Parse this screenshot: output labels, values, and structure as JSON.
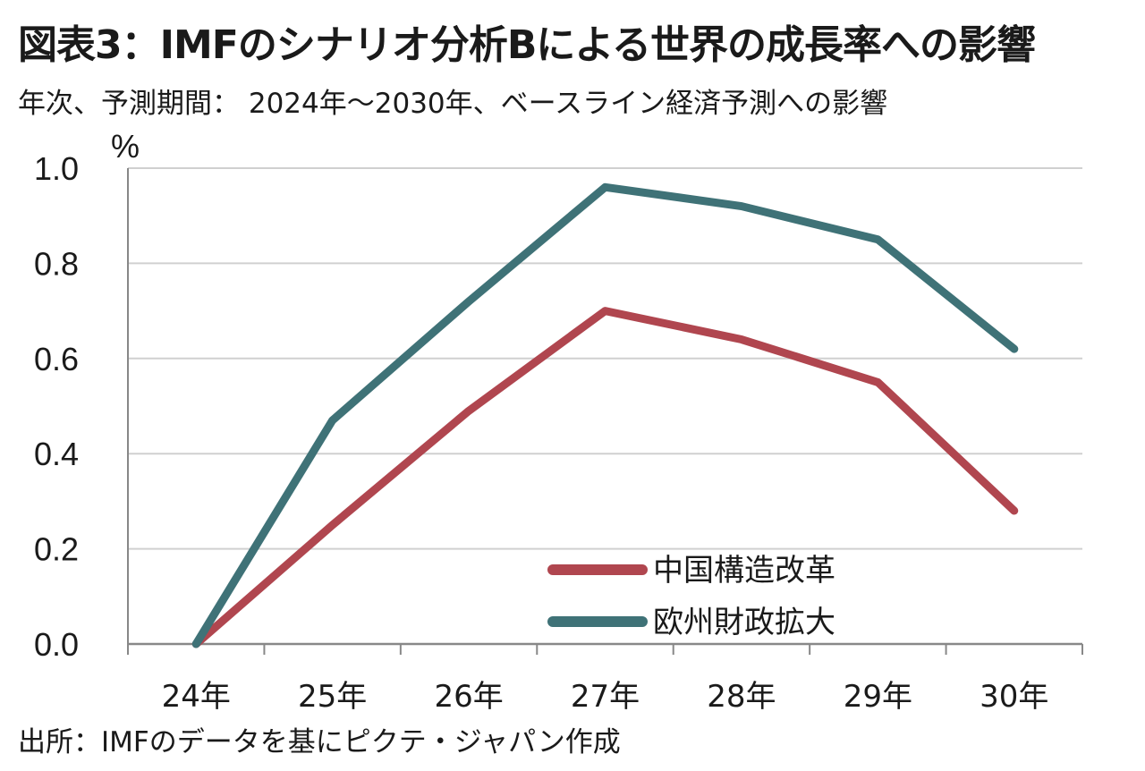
{
  "title": "図表3：IMFのシナリオ分析Bによる世界の成長率への影響",
  "subtitle": "年次、予測期間： 2024年～2030年、ベースライン経済予測への影響",
  "source": "出所：IMFのデータを基にピクテ・ジャパン作成",
  "chart_data": {
    "type": "line",
    "categories": [
      "24年",
      "25年",
      "26年",
      "27年",
      "28年",
      "29年",
      "30年"
    ],
    "ylabel": "%",
    "ylim": [
      0,
      1.0
    ],
    "yticks": [
      0.0,
      0.2,
      0.4,
      0.6,
      0.8,
      1.0
    ],
    "ytick_labels": [
      "0.0",
      "0.2",
      "0.4",
      "0.6",
      "0.8",
      "1.0"
    ],
    "grid": true,
    "legend_position": "bottom-right",
    "series": [
      {
        "name": "中国構造改革",
        "color": "#B0464F",
        "values": [
          0.0,
          0.25,
          0.49,
          0.7,
          0.64,
          0.55,
          0.28
        ]
      },
      {
        "name": "欧州財政拡大",
        "color": "#3F7277",
        "values": [
          0.0,
          0.47,
          0.72,
          0.96,
          0.92,
          0.85,
          0.62
        ]
      }
    ]
  }
}
